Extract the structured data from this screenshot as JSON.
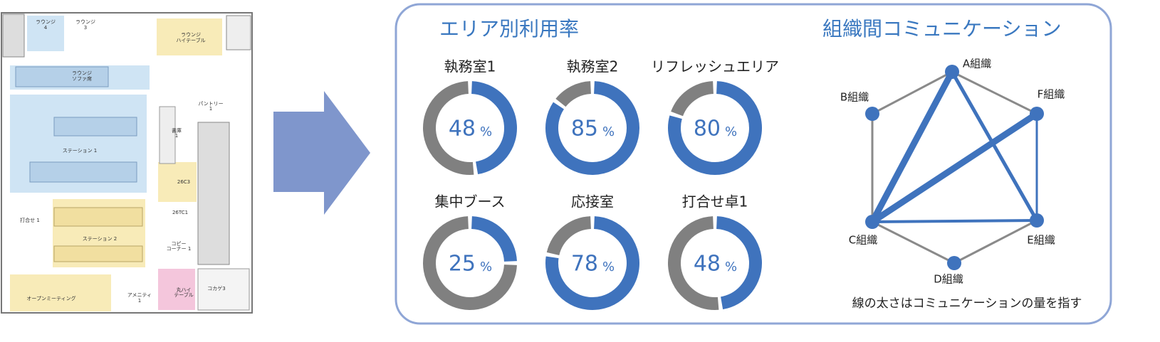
{
  "floor_plan": {
    "labels": [
      "ラウンジ",
      "4",
      "ラウンジ",
      "3",
      "ラウンジ",
      "ハイテーブル",
      "ラウンジ",
      "ソファ席",
      "パントリー",
      "1",
      "書庫",
      "1",
      "ステーション 1",
      "26C3",
      "26TC1",
      "打合せ 1",
      "ステーション 2",
      "コピー",
      "コーナー 1",
      "オープンミーティング",
      "アメニティ",
      "1",
      "丸ハイ",
      "テーブル",
      "コカゲ3"
    ]
  },
  "usage": {
    "title": "エリア別利用率",
    "areas": [
      {
        "name": "執務室1",
        "value": 48,
        "unit": "%"
      },
      {
        "name": "執務室2",
        "value": 85,
        "unit": "%"
      },
      {
        "name": "リフレッシュエリア",
        "value": 80,
        "unit": "%"
      },
      {
        "name": "集中ブース",
        "value": 25,
        "unit": "%"
      },
      {
        "name": "応接室",
        "value": 78,
        "unit": "%"
      },
      {
        "name": "打合せ卓1",
        "value": 48,
        "unit": "%"
      }
    ]
  },
  "network": {
    "title": "組織間コミュニケーション",
    "nodes": [
      {
        "label": "A組織"
      },
      {
        "label": "B組織"
      },
      {
        "label": "C組織"
      },
      {
        "label": "D組織"
      },
      {
        "label": "E組織"
      },
      {
        "label": "F組織"
      }
    ],
    "edges": [
      {
        "from": 0,
        "to": 1,
        "weight": 3,
        "color": "#8a8a8a"
      },
      {
        "from": 1,
        "to": 2,
        "weight": 3,
        "color": "#8a8a8a"
      },
      {
        "from": 2,
        "to": 3,
        "weight": 3,
        "color": "#8a8a8a"
      },
      {
        "from": 3,
        "to": 4,
        "weight": 3,
        "color": "#8a8a8a"
      },
      {
        "from": 5,
        "to": 0,
        "weight": 3,
        "color": "#8a8a8a"
      },
      {
        "from": 4,
        "to": 5,
        "weight": 3,
        "color": "#3f73bd"
      },
      {
        "from": 2,
        "to": 4,
        "weight": 4,
        "color": "#3f73bd"
      },
      {
        "from": 0,
        "to": 4,
        "weight": 5,
        "color": "#3f73bd"
      },
      {
        "from": 0,
        "to": 2,
        "weight": 9,
        "color": "#3f73bd"
      },
      {
        "from": 2,
        "to": 5,
        "weight": 9,
        "color": "#3f73bd"
      }
    ],
    "note": "線の太さはコミュニケーションの量を指す"
  }
}
